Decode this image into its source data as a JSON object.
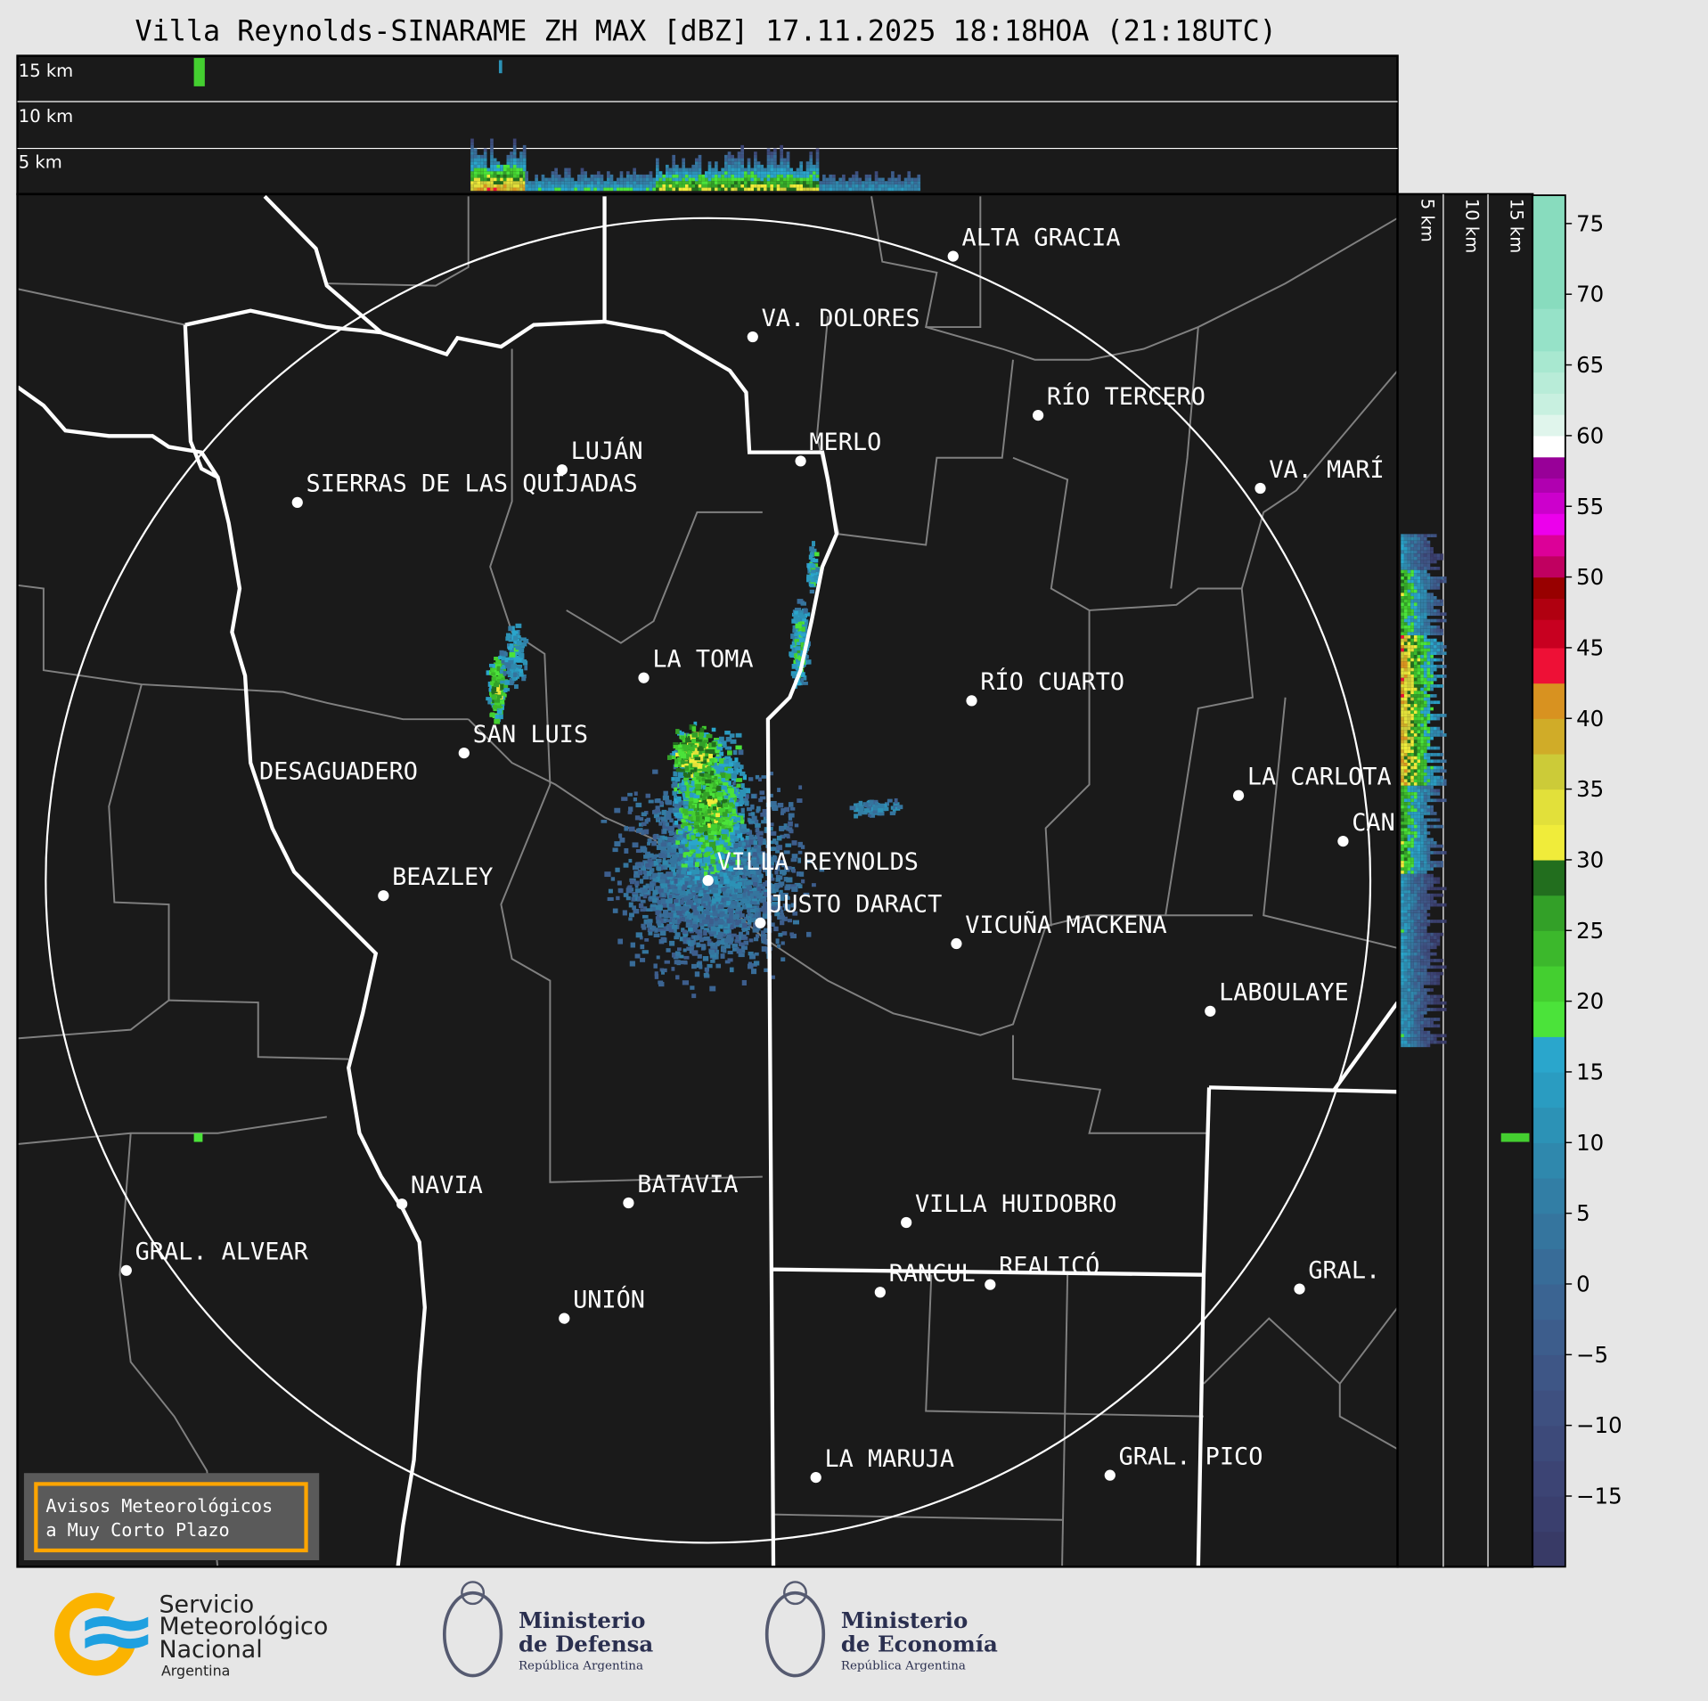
{
  "title": "Villa Reynolds-SINARAME ZH MAX [dBZ] 17.11.2025 18:18HOA (21:18UTC)",
  "top_panel": {
    "height_labels": [
      "15 km",
      "10 km",
      "5 km"
    ]
  },
  "side_panel": {
    "height_labels": [
      "5 km",
      "10 km",
      "15 km"
    ]
  },
  "cities": [
    "ALTA GRACIA",
    "VA. DOLORES",
    "RÍO TERCERO",
    "MERLO",
    "LUJÁN",
    "SIERRAS DE LAS QUIJADAS",
    "VA. MARÍ",
    "LA TOMA",
    "RÍO CUARTO",
    "SAN LUIS",
    "DESAGUADERO",
    "LA CARLOTA",
    "CAN",
    "VILLA REYNOLDS",
    "BEAZLEY",
    "JUSTO DARACT",
    "VICUÑA MACKENA",
    "LABOULAYE",
    "NAVIA",
    "BATAVIA",
    "VILLA HUIDOBRO",
    "GRAL. ALVEAR",
    "RANCUL",
    "REALICÓ",
    "GRAL.",
    "UNIÓN",
    "LA MARUJA",
    "GRAL. PICO"
  ],
  "colorbar": {
    "unit": "dBZ",
    "range": [
      -20,
      77
    ],
    "ticks": [
      "75",
      "70",
      "65",
      "60",
      "55",
      "50",
      "45",
      "40",
      "35",
      "30",
      "25",
      "20",
      "15",
      "10",
      "5",
      "0",
      "−5",
      "−10",
      "−15"
    ],
    "bands": [
      {
        "from": -20,
        "color": "#383a66"
      },
      {
        "from": -17.5,
        "color": "#3a3f6e"
      },
      {
        "from": -15,
        "color": "#3c4474"
      },
      {
        "from": -12.5,
        "color": "#3d4a7a"
      },
      {
        "from": -10,
        "color": "#3e5080"
      },
      {
        "from": -7.5,
        "color": "#3e5686"
      },
      {
        "from": -5,
        "color": "#3d5d8c"
      },
      {
        "from": -2.5,
        "color": "#3b6492"
      },
      {
        "from": 0,
        "color": "#386c98"
      },
      {
        "from": 2.5,
        "color": "#35759e"
      },
      {
        "from": 5,
        "color": "#327ea5"
      },
      {
        "from": 7.5,
        "color": "#2f88ad"
      },
      {
        "from": 10,
        "color": "#2c92b6"
      },
      {
        "from": 12.5,
        "color": "#2a9cc1"
      },
      {
        "from": 15,
        "color": "#2aa6cc"
      },
      {
        "from": 17.5,
        "color": "#4be33a"
      },
      {
        "from": 20,
        "color": "#44cf30"
      },
      {
        "from": 22.5,
        "color": "#3cb82c"
      },
      {
        "from": 25,
        "color": "#33a028"
      },
      {
        "from": 27.5,
        "color": "#226e1e"
      },
      {
        "from": 30,
        "color": "#f0ec3a"
      },
      {
        "from": 32.5,
        "color": "#e2e03a"
      },
      {
        "from": 35,
        "color": "#cccb38"
      },
      {
        "from": 37.5,
        "color": "#d0ac28"
      },
      {
        "from": 40,
        "color": "#d89220"
      },
      {
        "from": 42.5,
        "color": "#dc7e18"
      },
      {
        "from": 42.5,
        "color": "#ee1036"
      },
      {
        "from": 45,
        "color": "#c80020"
      },
      {
        "from": 47,
        "color": "#b00010"
      },
      {
        "from": 48.5,
        "color": "#980000"
      },
      {
        "from": 50,
        "color": "#c00060"
      },
      {
        "from": 51.5,
        "color": "#dc0098"
      },
      {
        "from": 53,
        "color": "#ec00ec"
      },
      {
        "from": 54.5,
        "color": "#cc00cc"
      },
      {
        "from": 56,
        "color": "#b000b0"
      },
      {
        "from": 57,
        "color": "#980098"
      },
      {
        "from": 58.5,
        "color": "#ffffff"
      },
      {
        "from": 60,
        "color": "#e0f5ec"
      },
      {
        "from": 61.5,
        "color": "#c8f0e0"
      },
      {
        "from": 63,
        "color": "#b8ecd8"
      },
      {
        "from": 64.5,
        "color": "#a8e8d0"
      },
      {
        "from": 66,
        "color": "#96e2c8"
      },
      {
        "from": 69,
        "color": "#88dcbe"
      }
    ]
  },
  "notice_box": {
    "line1": "Avisos Meteorológicos",
    "line2": "a Muy Corto Plazo",
    "border_color": "#ffa500"
  },
  "logos": {
    "smn": {
      "line1": "Servicio",
      "line2": "Meteorológico",
      "line3": "Nacional",
      "line4": "Argentina"
    },
    "defensa": {
      "line1": "Ministerio",
      "line2": "de Defensa",
      "line3": "República Argentina"
    },
    "economia": {
      "line1": "Ministerio",
      "line2": "de Economía",
      "line3": "República Argentina"
    }
  },
  "colors": {
    "map_background": "#1a1a1a",
    "page_background": "#e6e6e6",
    "border_province": "#ffffff",
    "border_department": "#808080"
  }
}
